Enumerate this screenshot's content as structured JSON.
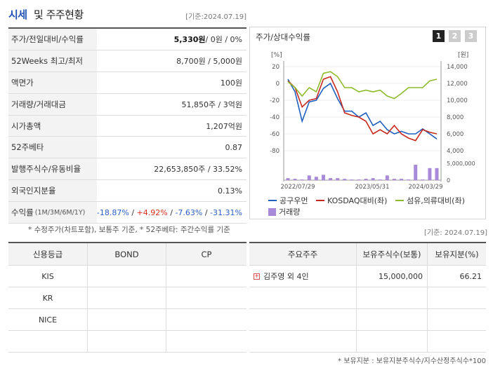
{
  "header": {
    "title_a": "시세",
    "title_b": "및 주주현황",
    "ref": "[기준:2024.07.19]"
  },
  "market": [
    {
      "label": "주가/전일대비/수익률",
      "value_b": "5,330원",
      "value_rest": " / 0원 / 0%"
    },
    {
      "label": "52Weeks 최고/최저",
      "value": "8,700원 / 5,000원"
    },
    {
      "label": "액면가",
      "value": "100원"
    },
    {
      "label": "거래량/거래대금",
      "value": "51,850주 / 3억원"
    },
    {
      "label": "시가총액",
      "value": "1,207억원"
    },
    {
      "label": "52주베타",
      "value": "0.87"
    },
    {
      "label": "발행주식수/유동비율",
      "value": "22,653,850주 / 33.52%"
    },
    {
      "label": "외국인지분율",
      "value": "0.13%"
    }
  ],
  "returns": {
    "label": "수익률",
    "sub": "(1M/3M/6M/1Y)",
    "values": [
      "-18.87%",
      "+4.92%",
      "-7.63%",
      "-31.31%"
    ],
    "sep": "/"
  },
  "note1": "* 수정주가(차트포함), 보통주 기준, * 52주베타: 주간수익률 기준",
  "ref2": "[기준: 2024.07.19]",
  "chart_panel": {
    "title": "주가/상대수익률",
    "tabs": [
      "1",
      "2",
      "3"
    ],
    "legend": [
      "공구우먼",
      "KOSDAQ대비(좌)",
      "섬유,의류대비(좌)",
      "거래량"
    ]
  },
  "chart_data": {
    "type": "line",
    "left_axis": {
      "unit": "[%]",
      "ticks": [
        20,
        0,
        -20,
        -40,
        -60,
        -80
      ],
      "range": [
        -80,
        20
      ]
    },
    "right_axis": {
      "unit": "[원]",
      "ticks": [
        14000,
        12000,
        10000,
        8000,
        6000,
        4000
      ],
      "range": [
        4000,
        14000
      ]
    },
    "volume_axis": {
      "ticks": [
        "5,000,000",
        "0"
      ]
    },
    "x_ticks": [
      "2022/07/29",
      "2023/05/31",
      "2024/03/29"
    ],
    "series": [
      {
        "name": "공구우먼",
        "color": "#1f5fbf",
        "values": [
          5,
          -10,
          -45,
          -22,
          -20,
          -6,
          0,
          -18,
          -33,
          -33,
          -40,
          -35,
          -50,
          -45,
          -55,
          -60,
          -57,
          -60,
          -60,
          -54,
          -60,
          -66
        ]
      },
      {
        "name": "KOSDAQ대비(좌)",
        "color": "#c8281e",
        "values": [
          3,
          -5,
          -28,
          -20,
          -18,
          5,
          8,
          -10,
          -35,
          -38,
          -40,
          -45,
          -60,
          -55,
          -60,
          -50,
          -60,
          -65,
          -68,
          -55,
          -58,
          -60
        ]
      },
      {
        "name": "섬유,의류대비(좌)",
        "color": "#8dbb2a",
        "values": [
          2,
          -5,
          -15,
          -5,
          -10,
          12,
          14,
          8,
          -5,
          -5,
          -10,
          -8,
          -10,
          -8,
          -15,
          -18,
          -12,
          -5,
          -5,
          -5,
          3,
          5
        ]
      },
      {
        "name": "거래량",
        "color": "#a98ad8",
        "values": [
          0.3,
          0.2,
          0.1,
          0.7,
          0.5,
          0.8,
          0.3,
          0.3,
          0.2,
          0.1,
          0.1,
          0.2,
          0.3,
          0.1,
          0.7,
          0.2,
          0.2,
          0.1,
          2.3,
          0.1,
          1.8,
          1.8
        ]
      }
    ]
  },
  "credit": {
    "headers": [
      "신용등급",
      "BOND",
      "CP"
    ],
    "rows": [
      "KIS",
      "KR",
      "NICE",
      ""
    ]
  },
  "holders": {
    "headers": [
      "주요주주",
      "보유주식수(보통)",
      "보유지분(%)"
    ],
    "rows": [
      {
        "name": "김주영 외 4인",
        "shares": "15,000,000",
        "pct": "66.21"
      }
    ],
    "note": "* 보유지분 : 보유지분주식수/지수산정주식수*100"
  }
}
